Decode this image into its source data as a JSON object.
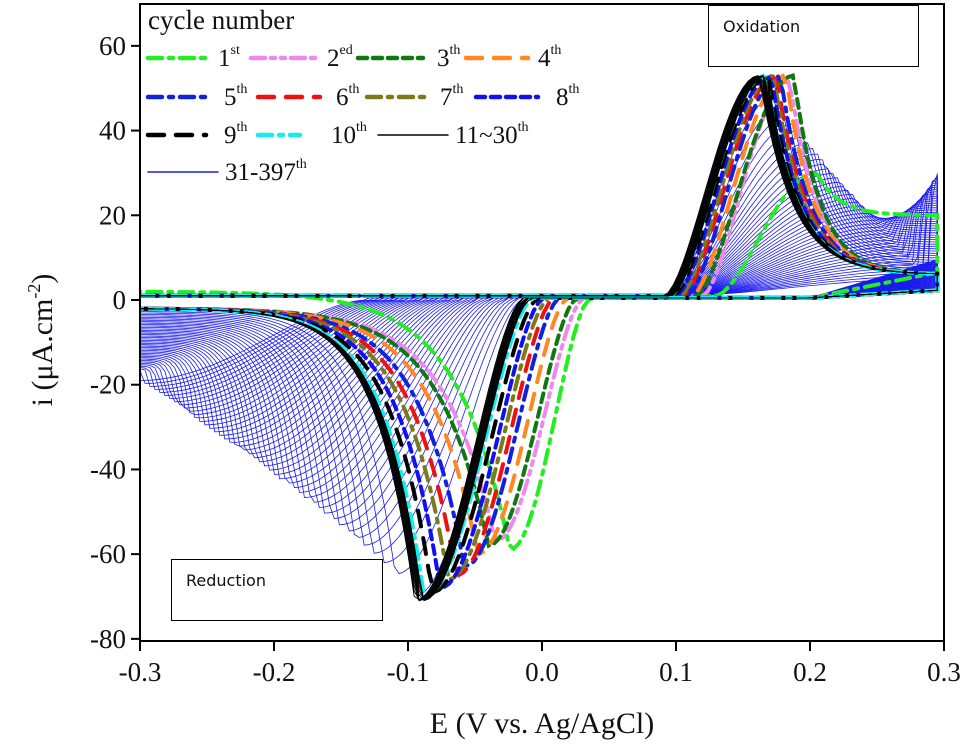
{
  "chart_data": {
    "type": "line",
    "title": "",
    "xlabel": "E (V vs. Ag/AgCl)",
    "ylabel_main": "i (μA.cm",
    "ylabel_sup": "-2",
    "ylabel_close": ")",
    "xlim": [
      -0.3,
      0.3
    ],
    "ylim": [
      -80,
      70
    ],
    "xticks": [
      -0.3,
      -0.2,
      -0.1,
      0.0,
      0.1,
      0.2,
      0.3
    ],
    "xtick_labels": [
      "-0.3",
      "-0.2",
      "-0.1",
      "0.0",
      "0.1",
      "0.2",
      "0.3"
    ],
    "yticks": [
      60,
      40,
      20,
      0,
      -20,
      -40,
      -60,
      -80
    ],
    "ytick_labels": [
      "60",
      "40",
      "20",
      "0",
      "-20",
      "-40",
      "-60",
      "-80"
    ],
    "grid": false,
    "legend_title": "cycle number",
    "legend_position": "top-left",
    "annotations": [
      {
        "text": "Oxidation",
        "near": "anodic peak (top-right)"
      },
      {
        "text": "Reduction",
        "near": "cathodic peak (bottom-left)"
      }
    ],
    "series": [
      {
        "name": "1",
        "sup": "st",
        "color": "#22ee22",
        "dash": "dashdot",
        "ox_peak_E": 0.205,
        "ox_peak_i": 30,
        "ox_onset_E": 0.13,
        "red_peak_E": -0.024,
        "red_peak_i": -59,
        "red_onset_E": 0.035,
        "tail_ox": 20,
        "tail_red": 2
      },
      {
        "name": "2",
        "sup": "ed",
        "color": "#ee88ee",
        "dash": "dashdotdot",
        "ox_peak_E": 0.185,
        "ox_peak_i": 52,
        "ox_onset_E": 0.12,
        "red_peak_E": -0.035,
        "red_peak_i": -57,
        "red_onset_E": 0.03,
        "tail_ox": 6,
        "tail_red": -2
      },
      {
        "name": "3",
        "sup": "th",
        "color": "#117711",
        "dash": "dash-short",
        "ox_peak_E": 0.188,
        "ox_peak_i": 53,
        "ox_onset_E": 0.115,
        "red_peak_E": -0.04,
        "red_peak_i": -58,
        "red_onset_E": 0.025,
        "tail_ox": 6,
        "tail_red": -2
      },
      {
        "name": "4",
        "sup": "th",
        "color": "#ff8822",
        "dash": "dash-long",
        "ox_peak_E": 0.182,
        "ox_peak_i": 53,
        "ox_onset_E": 0.112,
        "red_peak_E": -0.048,
        "red_peak_i": -60,
        "red_onset_E": 0.018,
        "tail_ox": 6,
        "tail_red": -2
      },
      {
        "name": "5",
        "sup": "th",
        "color": "#1122dd",
        "dash": "dashdot",
        "ox_peak_E": 0.178,
        "ox_peak_i": 53,
        "ox_onset_E": 0.108,
        "red_peak_E": -0.058,
        "red_peak_i": -63,
        "red_onset_E": 0.012,
        "tail_ox": 6,
        "tail_red": -2
      },
      {
        "name": "6",
        "sup": "th",
        "color": "#ee1111",
        "dash": "dash-long",
        "ox_peak_E": 0.175,
        "ox_peak_i": 53,
        "ox_onset_E": 0.105,
        "red_peak_E": -0.064,
        "red_peak_i": -65,
        "red_onset_E": 0.008,
        "tail_ox": 6,
        "tail_red": -2
      },
      {
        "name": "7",
        "sup": "th",
        "color": "#7a7a1a",
        "dash": "dashdot",
        "ox_peak_E": 0.173,
        "ox_peak_i": 53,
        "ox_onset_E": 0.103,
        "red_peak_E": -0.07,
        "red_peak_i": -66,
        "red_onset_E": 0.004,
        "tail_ox": 6,
        "tail_red": -2
      },
      {
        "name": "8",
        "sup": "th",
        "color": "#1111ee",
        "dash": "dash-short",
        "ox_peak_E": 0.171,
        "ox_peak_i": 53,
        "ox_onset_E": 0.1,
        "red_peak_E": -0.076,
        "red_peak_i": -68,
        "red_onset_E": 0.0,
        "tail_ox": 6,
        "tail_red": -2
      },
      {
        "name": "9",
        "sup": "th",
        "color": "#000000",
        "dash": "dash-long",
        "ox_peak_E": 0.169,
        "ox_peak_i": 53,
        "ox_onset_E": 0.098,
        "red_peak_E": -0.082,
        "red_peak_i": -69,
        "red_onset_E": -0.004,
        "tail_ox": 6,
        "tail_red": -2
      },
      {
        "name": "10",
        "sup": "th",
        "color": "#11eeee",
        "dash": "dashdot",
        "ox_peak_E": 0.167,
        "ox_peak_i": 53,
        "ox_onset_E": 0.096,
        "red_peak_E": -0.088,
        "red_peak_i": -70,
        "red_onset_E": -0.008,
        "tail_ox": 6,
        "tail_red": -2
      },
      {
        "name": "11~30",
        "sup": "th",
        "color": "#000000",
        "dash": "solid-thin",
        "ox_peak_E": 0.165,
        "ox_peak_i": 53,
        "ox_onset_E": 0.094,
        "red_peak_E": -0.092,
        "red_peak_i": -71,
        "red_onset_E": -0.012,
        "tail_ox": 6,
        "tail_red": -2,
        "count": 20
      },
      {
        "name": "31-397",
        "sup": "th",
        "color": "#1a1aee",
        "dash": "solid-thin",
        "ox_peak_E_range": [
          0.165,
          0.29
        ],
        "ox_peak_i_range": [
          53,
          5
        ],
        "red_peak_E_range": [
          -0.095,
          -0.3
        ],
        "red_peak_i_range": [
          -70,
          -19
        ],
        "count": 367
      }
    ]
  }
}
